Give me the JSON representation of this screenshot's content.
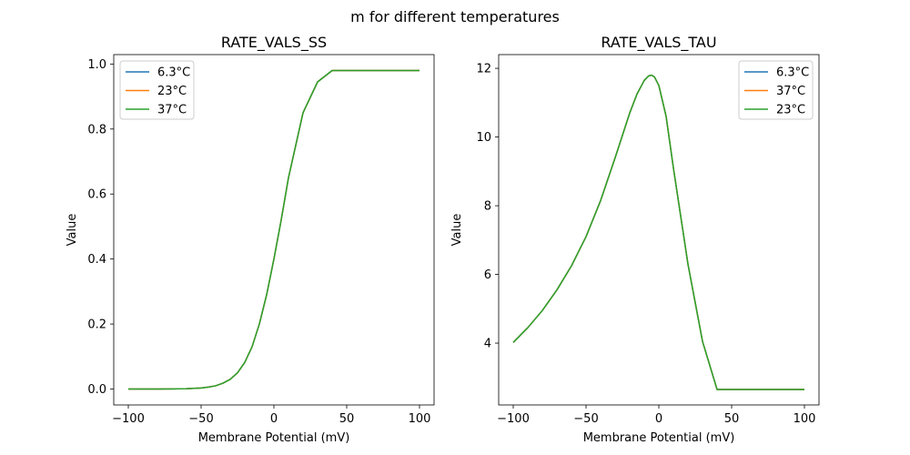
{
  "figure": {
    "title": "m for different temperatures"
  },
  "colors": {
    "series": [
      "#1f77b4",
      "#ff7f0e",
      "#2ca02c"
    ]
  },
  "chart_data": [
    {
      "type": "line",
      "title": "RATE_VALS_SS",
      "xlabel": "Membrane Potential (mV)",
      "ylabel": "Value",
      "xlim": [
        -110,
        110
      ],
      "ylim": [
        -0.049,
        1.029
      ],
      "xticks": [
        -100,
        -50,
        0,
        50,
        100
      ],
      "xtick_labels": [
        "−100",
        "−50",
        "0",
        "50",
        "100"
      ],
      "yticks": [
        0.0,
        0.2,
        0.4,
        0.6,
        0.8,
        1.0
      ],
      "ytick_labels": [
        "0.0",
        "0.2",
        "0.4",
        "0.6",
        "0.8",
        "1.0"
      ],
      "legend_position": "top-left",
      "x": [
        -100,
        -90,
        -80,
        -70,
        -60,
        -50,
        -45,
        -40,
        -35,
        -30,
        -25,
        -20,
        -15,
        -10,
        -5,
        0,
        5,
        10,
        20,
        30,
        40,
        50,
        60,
        70,
        80,
        90,
        100
      ],
      "series": [
        {
          "name": "6.3°C",
          "values": [
            0.0,
            0.0,
            0.0,
            0.0005,
            0.001,
            0.003,
            0.006,
            0.01,
            0.018,
            0.03,
            0.05,
            0.082,
            0.13,
            0.2,
            0.29,
            0.4,
            0.52,
            0.65,
            0.85,
            0.945,
            0.98,
            0.98,
            0.98,
            0.98,
            0.98,
            0.98,
            0.98
          ]
        },
        {
          "name": "23°C",
          "values": [
            0.0,
            0.0,
            0.0,
            0.0005,
            0.001,
            0.003,
            0.006,
            0.01,
            0.018,
            0.03,
            0.05,
            0.082,
            0.13,
            0.2,
            0.29,
            0.4,
            0.52,
            0.65,
            0.85,
            0.945,
            0.98,
            0.98,
            0.98,
            0.98,
            0.98,
            0.98,
            0.98
          ]
        },
        {
          "name": "37°C",
          "values": [
            0.0,
            0.0,
            0.0,
            0.0005,
            0.001,
            0.003,
            0.006,
            0.01,
            0.018,
            0.03,
            0.05,
            0.082,
            0.13,
            0.2,
            0.29,
            0.4,
            0.52,
            0.65,
            0.85,
            0.945,
            0.98,
            0.98,
            0.98,
            0.98,
            0.98,
            0.98,
            0.98
          ]
        }
      ]
    },
    {
      "type": "line",
      "title": "RATE_VALS_TAU",
      "xlabel": "Membrane Potential (mV)",
      "ylabel": "Value",
      "xlim": [
        -110,
        110
      ],
      "ylim": [
        2.2,
        12.4
      ],
      "xticks": [
        -100,
        -50,
        0,
        50,
        100
      ],
      "xtick_labels": [
        "−100",
        "−50",
        "0",
        "50",
        "100"
      ],
      "yticks": [
        4,
        6,
        8,
        10,
        12
      ],
      "ytick_labels": [
        "4",
        "6",
        "8",
        "10",
        "12"
      ],
      "legend_position": "top-right",
      "x": [
        -100,
        -90,
        -80,
        -70,
        -60,
        -50,
        -40,
        -30,
        -20,
        -15,
        -10,
        -7,
        -5,
        -3,
        0,
        5,
        10,
        20,
        30,
        40,
        50,
        60,
        70,
        80,
        90,
        100
      ],
      "series": [
        {
          "name": "6.3°C",
          "values": [
            4.02,
            4.45,
            4.95,
            5.55,
            6.25,
            7.1,
            8.15,
            9.4,
            10.7,
            11.25,
            11.65,
            11.78,
            11.8,
            11.75,
            11.5,
            10.6,
            9.1,
            6.3,
            4.05,
            2.65,
            2.65,
            2.65,
            2.65,
            2.65,
            2.65,
            2.65
          ]
        },
        {
          "name": "37°C",
          "values": [
            4.02,
            4.45,
            4.95,
            5.55,
            6.25,
            7.1,
            8.15,
            9.4,
            10.7,
            11.25,
            11.65,
            11.78,
            11.8,
            11.75,
            11.5,
            10.6,
            9.1,
            6.3,
            4.05,
            2.65,
            2.65,
            2.65,
            2.65,
            2.65,
            2.65,
            2.65
          ]
        },
        {
          "name": "23°C",
          "values": [
            4.02,
            4.45,
            4.95,
            5.55,
            6.25,
            7.1,
            8.15,
            9.4,
            10.7,
            11.25,
            11.65,
            11.78,
            11.8,
            11.75,
            11.5,
            10.6,
            9.1,
            6.3,
            4.05,
            2.65,
            2.65,
            2.65,
            2.65,
            2.65,
            2.65,
            2.65
          ]
        }
      ]
    }
  ]
}
